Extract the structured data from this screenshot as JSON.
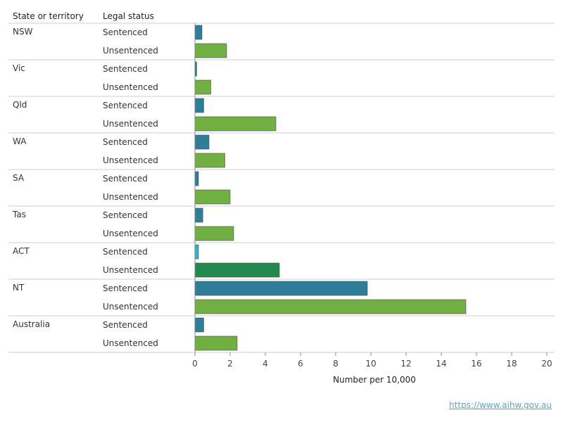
{
  "chart_data": {
    "type": "bar",
    "orientation": "horizontal",
    "column_headers": [
      "State or territory",
      "Legal status"
    ],
    "xlabel": "Number per 10,000",
    "xlim": [
      0,
      20
    ],
    "x_ticks": [
      "0",
      "2",
      "4",
      "6",
      "8",
      "10",
      "12",
      "14",
      "16",
      "18",
      "20"
    ],
    "grid": false,
    "groups": [
      {
        "state": "NSW",
        "bars": [
          {
            "status": "Sentenced",
            "value": 0.4,
            "color": "#2e7d99"
          },
          {
            "status": "Unsentenced",
            "value": 1.8,
            "color": "#72b043"
          }
        ]
      },
      {
        "state": "Vic",
        "bars": [
          {
            "status": "Sentenced",
            "value": 0.1,
            "color": "#2e7d99"
          },
          {
            "status": "Unsentenced",
            "value": 0.9,
            "color": "#72b043"
          }
        ]
      },
      {
        "state": "Qld",
        "bars": [
          {
            "status": "Sentenced",
            "value": 0.5,
            "color": "#2e7d99"
          },
          {
            "status": "Unsentenced",
            "value": 4.6,
            "color": "#72b043"
          }
        ]
      },
      {
        "state": "WA",
        "bars": [
          {
            "status": "Sentenced",
            "value": 0.8,
            "color": "#2e7d99"
          },
          {
            "status": "Unsentenced",
            "value": 1.7,
            "color": "#72b043"
          }
        ]
      },
      {
        "state": "SA",
        "bars": [
          {
            "status": "Sentenced",
            "value": 0.2,
            "color": "#2e7d99"
          },
          {
            "status": "Unsentenced",
            "value": 2.0,
            "color": "#72b043"
          }
        ]
      },
      {
        "state": "Tas",
        "bars": [
          {
            "status": "Sentenced",
            "value": 0.45,
            "color": "#2e7d99"
          },
          {
            "status": "Unsentenced",
            "value": 2.2,
            "color": "#72b043"
          }
        ]
      },
      {
        "state": "ACT",
        "bars": [
          {
            "status": "Sentenced",
            "value": 0.2,
            "color": "#2fb3c8"
          },
          {
            "status": "Unsentenced",
            "value": 4.8,
            "color": "#238a4f"
          }
        ]
      },
      {
        "state": "NT",
        "bars": [
          {
            "status": "Sentenced",
            "value": 9.8,
            "color": "#2e7d99"
          },
          {
            "status": "Unsentenced",
            "value": 15.4,
            "color": "#72b043"
          }
        ]
      },
      {
        "state": "Australia",
        "bars": [
          {
            "status": "Sentenced",
            "value": 0.5,
            "color": "#2e7d99"
          },
          {
            "status": "Unsentenced",
            "value": 2.4,
            "color": "#72b043"
          }
        ]
      }
    ]
  },
  "footer": {
    "source_link": "https://www.aihw.gov.au"
  }
}
